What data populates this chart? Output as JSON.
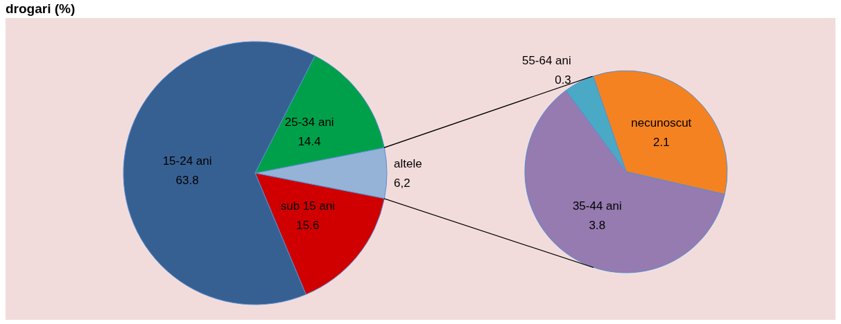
{
  "chart_data": [
    {
      "type": "pie",
      "title": "drogari (%)",
      "categories": [
        "altele",
        "sub 15 ani",
        "15-24 ani",
        "25-34 ani"
      ],
      "values": [
        6.2,
        15.6,
        63.8,
        14.4
      ],
      "colors": [
        "#95b3d7",
        "#d00000",
        "#376092",
        "#00a04a"
      ],
      "value_labels": [
        "6,2",
        "15.6",
        "63.8",
        "14.4"
      ]
    },
    {
      "type": "pie",
      "categories": [
        "necunoscut",
        "35-44 ani",
        "55-64 ani"
      ],
      "values": [
        2.1,
        3.8,
        0.3
      ],
      "colors": [
        "#f58220",
        "#957bb0",
        "#4aaac5"
      ],
      "data_labels": true
    }
  ]
}
